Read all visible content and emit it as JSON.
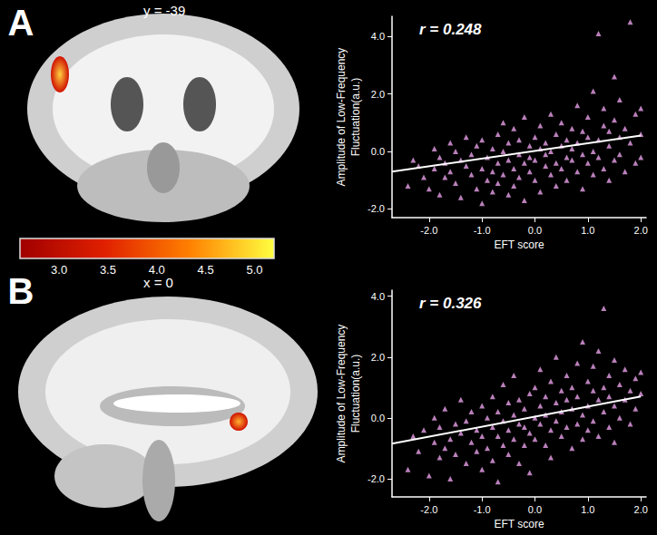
{
  "panels": [
    {
      "letter": "A",
      "slice_label": "y = -39"
    },
    {
      "letter": "B",
      "slice_label": "x = 0"
    }
  ],
  "colorbar": {
    "range": [
      2.6,
      5.2
    ],
    "ticks": [
      {
        "value": 3,
        "label": "3.0"
      },
      {
        "value": 3.5,
        "label": "3.5"
      },
      {
        "value": 4,
        "label": "4.0"
      },
      {
        "value": 4.5,
        "label": "4.5"
      },
      {
        "value": 5,
        "label": "5.0"
      }
    ],
    "colors": [
      "#a00000",
      "#e02000",
      "#ff8000",
      "#ffff40"
    ]
  },
  "chart_data": [
    {
      "type": "scatter",
      "annotation": "r = 0.248",
      "xlabel": "EFT score",
      "ylabel": [
        "Amplitude of Low-Frequency",
        "Fluctuation(a.u.)"
      ],
      "color": "#e8a0ea",
      "marker": "triangle",
      "xlim": [
        -2.7,
        2.1
      ],
      "ylim": [
        -2.3,
        4.7
      ],
      "xticks": [
        {
          "value": -2,
          "label": "-2.0"
        },
        {
          "value": -1,
          "label": "-1.0"
        },
        {
          "value": 0,
          "label": "0.0"
        },
        {
          "value": 1,
          "label": "1.0"
        },
        {
          "value": 2,
          "label": "2.0"
        }
      ],
      "yticks": [
        {
          "value": -2,
          "label": "-2.0"
        },
        {
          "value": 0,
          "label": "0.0"
        },
        {
          "value": 2,
          "label": "2.0"
        },
        {
          "value": 4,
          "label": "4.0"
        }
      ],
      "fit_line": {
        "x": [
          -2.7,
          2.0
        ],
        "values": [
          -0.7,
          0.55
        ],
        "color": "#ffffff"
      },
      "x": [
        -2.4,
        -2.3,
        -2.2,
        -2.1,
        -2.0,
        -1.9,
        -1.9,
        -1.8,
        -1.8,
        -1.7,
        -1.7,
        -1.6,
        -1.6,
        -1.5,
        -1.5,
        -1.4,
        -1.4,
        -1.3,
        -1.3,
        -1.2,
        -1.2,
        -1.1,
        -1.1,
        -1.0,
        -1.0,
        -1.0,
        -0.9,
        -0.9,
        -0.8,
        -0.8,
        -0.8,
        -0.7,
        -0.7,
        -0.7,
        -0.6,
        -0.6,
        -0.6,
        -0.5,
        -0.5,
        -0.5,
        -0.4,
        -0.4,
        -0.4,
        -0.3,
        -0.3,
        -0.3,
        -0.2,
        -0.2,
        -0.2,
        -0.1,
        -0.1,
        -0.1,
        0.0,
        0.0,
        0.0,
        0.1,
        0.1,
        0.1,
        0.2,
        0.2,
        0.2,
        0.3,
        0.3,
        0.3,
        0.4,
        0.4,
        0.4,
        0.5,
        0.5,
        0.5,
        0.6,
        0.6,
        0.6,
        0.7,
        0.7,
        0.7,
        0.8,
        0.8,
        0.8,
        0.9,
        0.9,
        0.9,
        1.0,
        1.0,
        1.0,
        1.1,
        1.1,
        1.1,
        1.2,
        1.2,
        1.2,
        1.3,
        1.3,
        1.3,
        1.4,
        1.4,
        1.4,
        1.5,
        1.5,
        1.5,
        1.6,
        1.6,
        1.6,
        1.7,
        1.7,
        1.8,
        1.8,
        1.9,
        1.9,
        2.0,
        2.0,
        2.0
      ],
      "values": [
        -1.2,
        -0.3,
        -0.5,
        -0.9,
        -1.3,
        0.1,
        -0.6,
        -0.2,
        -1.5,
        -0.4,
        -0.9,
        0.3,
        -0.7,
        -1.1,
        0.0,
        -0.3,
        -1.6,
        -0.5,
        0.5,
        -0.8,
        -0.1,
        -1.3,
        0.2,
        -0.6,
        -1.8,
        0.4,
        -0.2,
        -1.0,
        0.1,
        -0.7,
        -1.4,
        0.6,
        -0.4,
        -1.1,
        0.0,
        -0.8,
        1.0,
        -0.3,
        -1.5,
        0.3,
        -0.6,
        0.8,
        -1.2,
        -0.1,
        0.4,
        -0.9,
        -0.4,
        1.2,
        -1.7,
        0.2,
        -0.7,
        -0.2,
        0.5,
        -1.0,
        -0.3,
        0.1,
        -1.4,
        0.9,
        -0.5,
        0.3,
        -0.1,
        1.3,
        -0.8,
        0.0,
        -0.4,
        0.6,
        -1.2,
        0.2,
        -0.6,
        1.0,
        -0.2,
        0.4,
        -1.0,
        0.8,
        -0.3,
        0.1,
        1.6,
        -0.7,
        0.3,
        -0.1,
        0.7,
        -1.3,
        0.5,
        -0.4,
        1.2,
        0.0,
        2.1,
        -0.8,
        0.4,
        -0.2,
        4.1,
        0.9,
        -0.6,
        1.5,
        0.2,
        -1.0,
        0.7,
        1.1,
        -0.3,
        2.6,
        0.5,
        -0.1,
        1.8,
        0.8,
        -0.7,
        4.5,
        0.3,
        1.3,
        -0.4,
        0.6,
        1.5,
        -0.2
      ]
    },
    {
      "type": "scatter",
      "annotation": "r = 0.326",
      "xlabel": "EFT score",
      "ylabel": [
        "Amplitude of Low-Frequency",
        "Fluctuation(a.u.)"
      ],
      "color": "#e8a0ea",
      "marker": "triangle",
      "xlim": [
        -2.7,
        2.1
      ],
      "ylim": [
        -2.6,
        4.2
      ],
      "xticks": [
        {
          "value": -2,
          "label": "-2.0"
        },
        {
          "value": -1,
          "label": "-1.0"
        },
        {
          "value": 0,
          "label": "0.0"
        },
        {
          "value": 1,
          "label": "1.0"
        },
        {
          "value": 2,
          "label": "2.0"
        }
      ],
      "yticks": [
        {
          "value": -2,
          "label": "-2.0"
        },
        {
          "value": 0,
          "label": "0.0"
        },
        {
          "value": 2,
          "label": "2.0"
        },
        {
          "value": 4,
          "label": "4.0"
        }
      ],
      "fit_line": {
        "x": [
          -2.7,
          2.0
        ],
        "values": [
          -0.85,
          0.7
        ],
        "color": "#ffffff"
      },
      "x": [
        -2.4,
        -2.3,
        -2.2,
        -2.1,
        -2.0,
        -1.9,
        -1.9,
        -1.8,
        -1.8,
        -1.7,
        -1.7,
        -1.6,
        -1.6,
        -1.5,
        -1.5,
        -1.4,
        -1.4,
        -1.3,
        -1.3,
        -1.2,
        -1.2,
        -1.1,
        -1.1,
        -1.0,
        -1.0,
        -1.0,
        -0.9,
        -0.9,
        -0.8,
        -0.8,
        -0.8,
        -0.7,
        -0.7,
        -0.7,
        -0.6,
        -0.6,
        -0.6,
        -0.5,
        -0.5,
        -0.5,
        -0.4,
        -0.4,
        -0.4,
        -0.3,
        -0.3,
        -0.3,
        -0.2,
        -0.2,
        -0.2,
        -0.1,
        -0.1,
        -0.1,
        0.0,
        0.0,
        0.0,
        0.1,
        0.1,
        0.1,
        0.2,
        0.2,
        0.2,
        0.3,
        0.3,
        0.3,
        0.4,
        0.4,
        0.4,
        0.5,
        0.5,
        0.5,
        0.6,
        0.6,
        0.6,
        0.7,
        0.7,
        0.7,
        0.8,
        0.8,
        0.8,
        0.9,
        0.9,
        0.9,
        1.0,
        1.0,
        1.0,
        1.1,
        1.1,
        1.1,
        1.2,
        1.2,
        1.2,
        1.3,
        1.3,
        1.3,
        1.4,
        1.4,
        1.4,
        1.5,
        1.5,
        1.5,
        1.6,
        1.6,
        1.7,
        1.7,
        1.8,
        1.8,
        1.9,
        1.9,
        2.0,
        2.0
      ],
      "values": [
        -1.7,
        -0.6,
        -1.1,
        -0.4,
        -1.9,
        -0.8,
        0.0,
        -1.3,
        -0.3,
        -1.0,
        0.3,
        -0.7,
        -2.0,
        -0.2,
        -1.2,
        -0.5,
        0.6,
        -1.5,
        -0.1,
        -0.8,
        0.2,
        -1.1,
        -0.4,
        0.4,
        -1.7,
        -0.6,
        0.0,
        -1.0,
        -0.3,
        0.7,
        -1.4,
        -0.6,
        0.2,
        -2.1,
        -0.1,
        -0.9,
        1.1,
        -0.4,
        0.5,
        -1.2,
        0.1,
        -0.7,
        1.4,
        -0.2,
        -1.5,
        0.6,
        0.3,
        -0.9,
        -0.3,
        0.8,
        -0.5,
        -1.8,
        0.0,
        1.0,
        -0.7,
        0.4,
        -0.2,
        1.6,
        -0.9,
        0.7,
        0.1,
        -0.4,
        1.2,
        -1.3,
        0.5,
        -0.1,
        2.0,
        0.9,
        -0.6,
        0.2,
        1.4,
        -0.3,
        0.6,
        -1.0,
        1.0,
        0.3,
        1.8,
        -0.2,
        0.7,
        2.5,
        0.1,
        -0.7,
        1.2,
        0.4,
        -0.4,
        0.9,
        1.7,
        -0.1,
        0.6,
        2.2,
        -0.6,
        3.6,
        1.0,
        0.2,
        1.4,
        -0.3,
        0.7,
        1.9,
        0.4,
        -0.8,
        1.1,
        0.0,
        1.6,
        0.6,
        0.9,
        -0.2,
        1.3,
        0.3,
        0.8,
        1.5
      ]
    }
  ]
}
